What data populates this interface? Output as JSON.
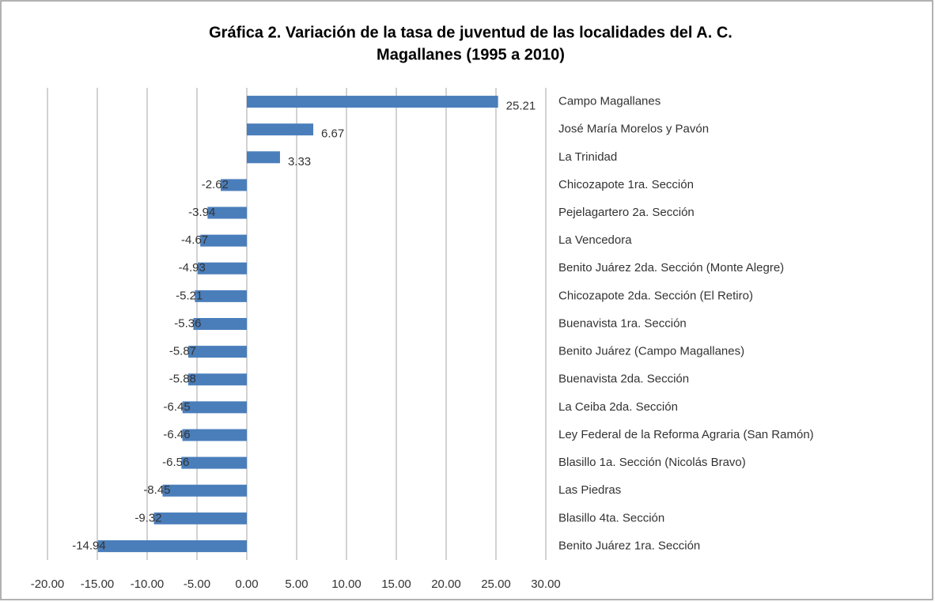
{
  "chart_data": {
    "type": "bar",
    "orientation": "horizontal",
    "title": [
      "Gráfica 2. Variación de la tasa de juventud de las localidades del A. C.",
      "Magallanes  (1995 a 2010)"
    ],
    "categories": [
      "Campo Magallanes",
      "José María Morelos y Pavón",
      "La Trinidad",
      "Chicozapote 1ra. Sección",
      "Pejelagartero 2a. Sección",
      "La Vencedora",
      "Benito Juárez 2da. Sección (Monte Alegre)",
      "Chicozapote 2da. Sección (El Retiro)",
      "Buenavista 1ra. Sección",
      "Benito Juárez (Campo Magallanes)",
      "Buenavista 2da. Sección",
      "La Ceiba 2da. Sección",
      "Ley Federal de la Reforma Agraria (San Ramón)",
      "Blasillo 1a. Sección (Nicolás Bravo)",
      "Las Piedras",
      "Blasillo 4ta. Sección",
      "Benito Juárez 1ra. Sección"
    ],
    "values": [
      25.21,
      6.67,
      3.33,
      -2.62,
      -3.94,
      -4.67,
      -4.93,
      -5.21,
      -5.36,
      -5.87,
      -5.88,
      -6.45,
      -6.46,
      -6.56,
      -8.45,
      -9.32,
      -14.94
    ],
    "color": "#4a7ebb",
    "xlim": [
      -20,
      30
    ],
    "xticks": [
      {
        "value": -20,
        "label": "-20.00"
      },
      {
        "value": -15,
        "label": "-15.00"
      },
      {
        "value": -10,
        "label": "-10.00"
      },
      {
        "value": -5,
        "label": "-5.00"
      },
      {
        "value": 0,
        "label": "0.00"
      },
      {
        "value": 5,
        "label": "5.00"
      },
      {
        "value": 10,
        "label": "10.00"
      },
      {
        "value": 15,
        "label": "15.00"
      },
      {
        "value": 20,
        "label": "20.00"
      },
      {
        "value": 25,
        "label": "25.00"
      },
      {
        "value": 30,
        "label": "30.00"
      }
    ],
    "grid": true
  }
}
